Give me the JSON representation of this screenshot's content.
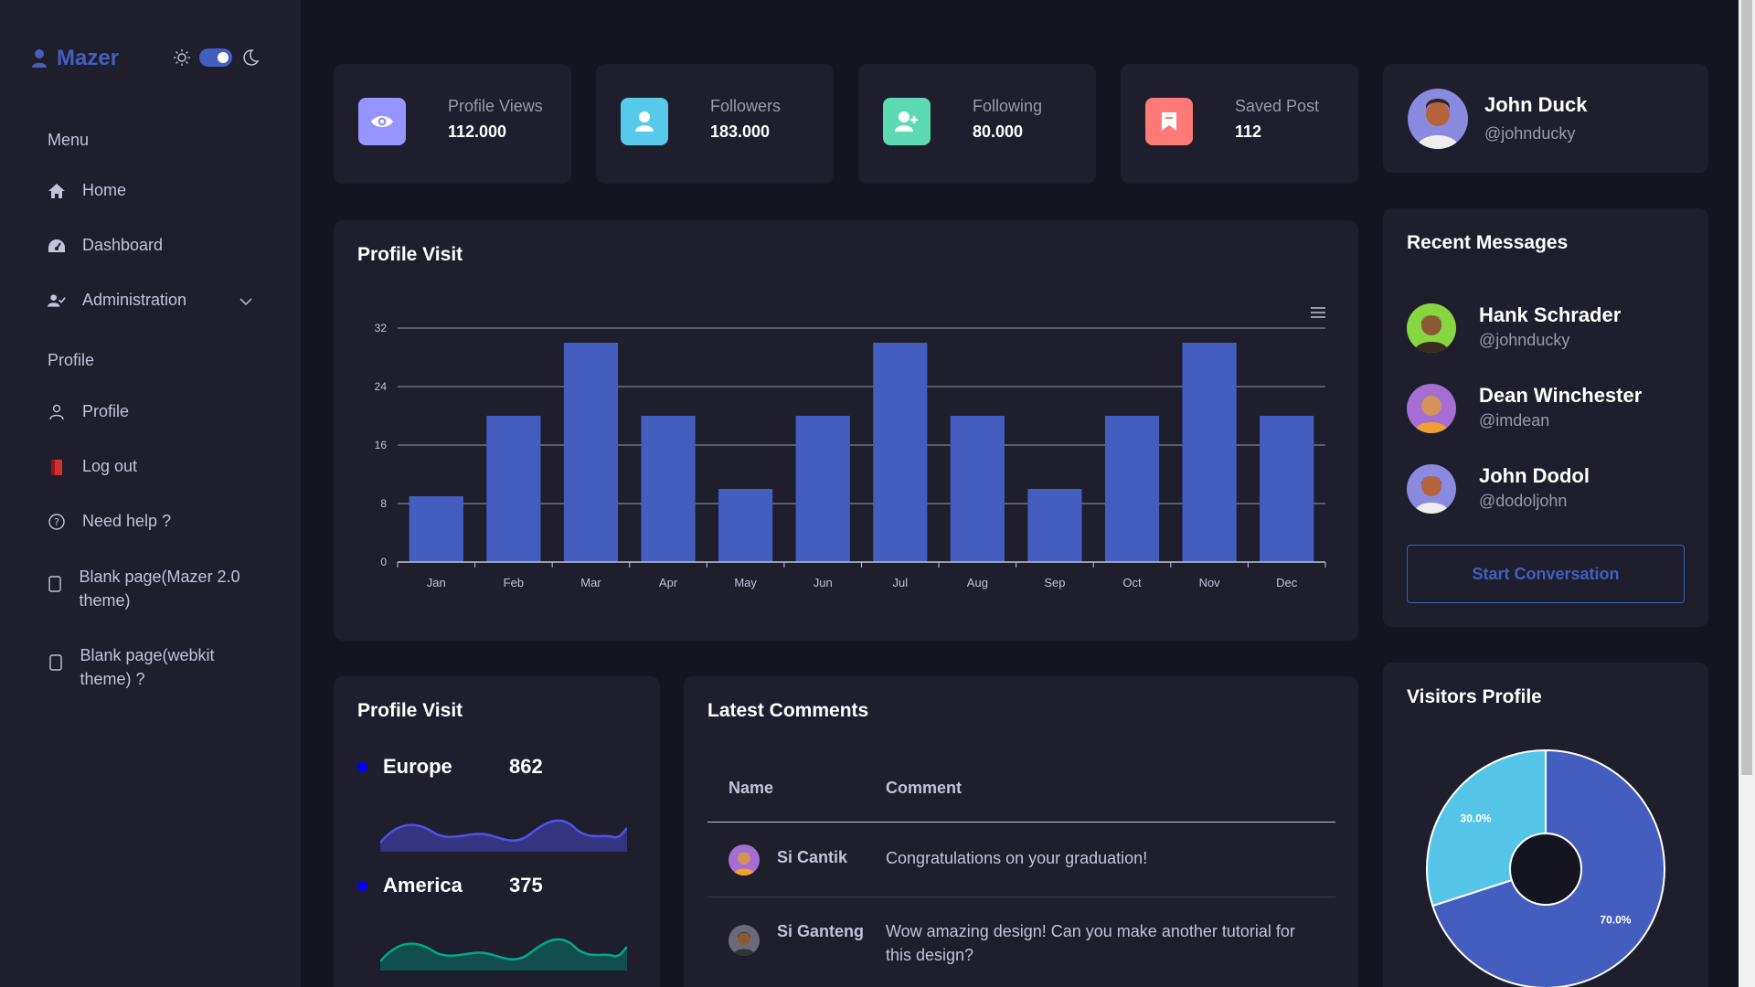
{
  "sidebar": {
    "brand": "Mazer",
    "menu_title": "Menu",
    "items": [
      {
        "label": "Home",
        "icon": "house-icon"
      },
      {
        "label": "Dashboard",
        "icon": "speedometer-icon"
      },
      {
        "label": "Administration",
        "icon": "person-check-icon"
      }
    ],
    "profile_title": "Profile",
    "profile_items": [
      {
        "label": "Profile",
        "icon": "person-icon"
      },
      {
        "label": "Log out",
        "icon": "door-icon"
      },
      {
        "label": "Need help ?",
        "icon": "question-circle-icon"
      },
      {
        "label": "Blank page(Mazer 2.0 theme)",
        "icon": "file-icon"
      },
      {
        "label": "Blank page(webkit theme) ?",
        "icon": "file-icon"
      }
    ]
  },
  "stats": [
    {
      "label": "Profile Views",
      "value": "112.000",
      "color": "#9694ff",
      "icon": "eye-icon"
    },
    {
      "label": "Followers",
      "value": "183.000",
      "color": "#57caeb",
      "icon": "person-icon"
    },
    {
      "label": "Following",
      "value": "80.000",
      "color": "#5ddab4",
      "icon": "person-add-icon"
    },
    {
      "label": "Saved Post",
      "value": "112",
      "color": "#ff7976",
      "icon": "bookmark-icon"
    }
  ],
  "user": {
    "name": "John Duck",
    "handle": "@johnducky"
  },
  "profile_visit": {
    "title": "Profile Visit",
    "menu_icon": "hamburger-icon"
  },
  "chart_data": {
    "type": "bar",
    "categories": [
      "Jan",
      "Feb",
      "Mar",
      "Apr",
      "May",
      "Jun",
      "Jul",
      "Aug",
      "Sep",
      "Oct",
      "Nov",
      "Dec"
    ],
    "series": [
      {
        "values": [
          9,
          20,
          30,
          20,
          10,
          20,
          30,
          20,
          10,
          20,
          30,
          20
        ]
      }
    ],
    "yticks": [
      "0",
      "8",
      "16",
      "24",
      "32"
    ],
    "ylim": [
      0,
      32
    ],
    "color": "#435ebe"
  },
  "recent_messages": {
    "title": "Recent Messages",
    "items": [
      {
        "name": "Hank Schrader",
        "handle": "@johnducky",
        "avatar_bg": "#86d541"
      },
      {
        "name": "Dean Winchester",
        "handle": "@imdean",
        "avatar_bg": "#a66dd4"
      },
      {
        "name": "John Dodol",
        "handle": "@dodoljohn",
        "avatar_bg": "#8a8ae0"
      }
    ],
    "button": "Start Conversation"
  },
  "region_visit": {
    "title": "Profile Visit",
    "regions": [
      {
        "name": "Europe",
        "value": "862",
        "color": "#5350e9"
      },
      {
        "name": "America",
        "value": "375",
        "color": "#008b75"
      }
    ]
  },
  "comments": {
    "title": "Latest Comments",
    "headers": [
      "Name",
      "Comment"
    ],
    "rows": [
      {
        "name": "Si Cantik",
        "comment": "Congratulations on your graduation!"
      },
      {
        "name": "Si Ganteng",
        "comment": "Wow amazing design! Can you make another tutorial for this design?"
      }
    ]
  },
  "visitors_profile": {
    "title": "Visitors Profile",
    "slices": [
      {
        "label": "70.0%",
        "value": 70,
        "color": "#435ebe"
      },
      {
        "label": "30.0%",
        "value": 30,
        "color": "#55c6e8"
      }
    ]
  }
}
